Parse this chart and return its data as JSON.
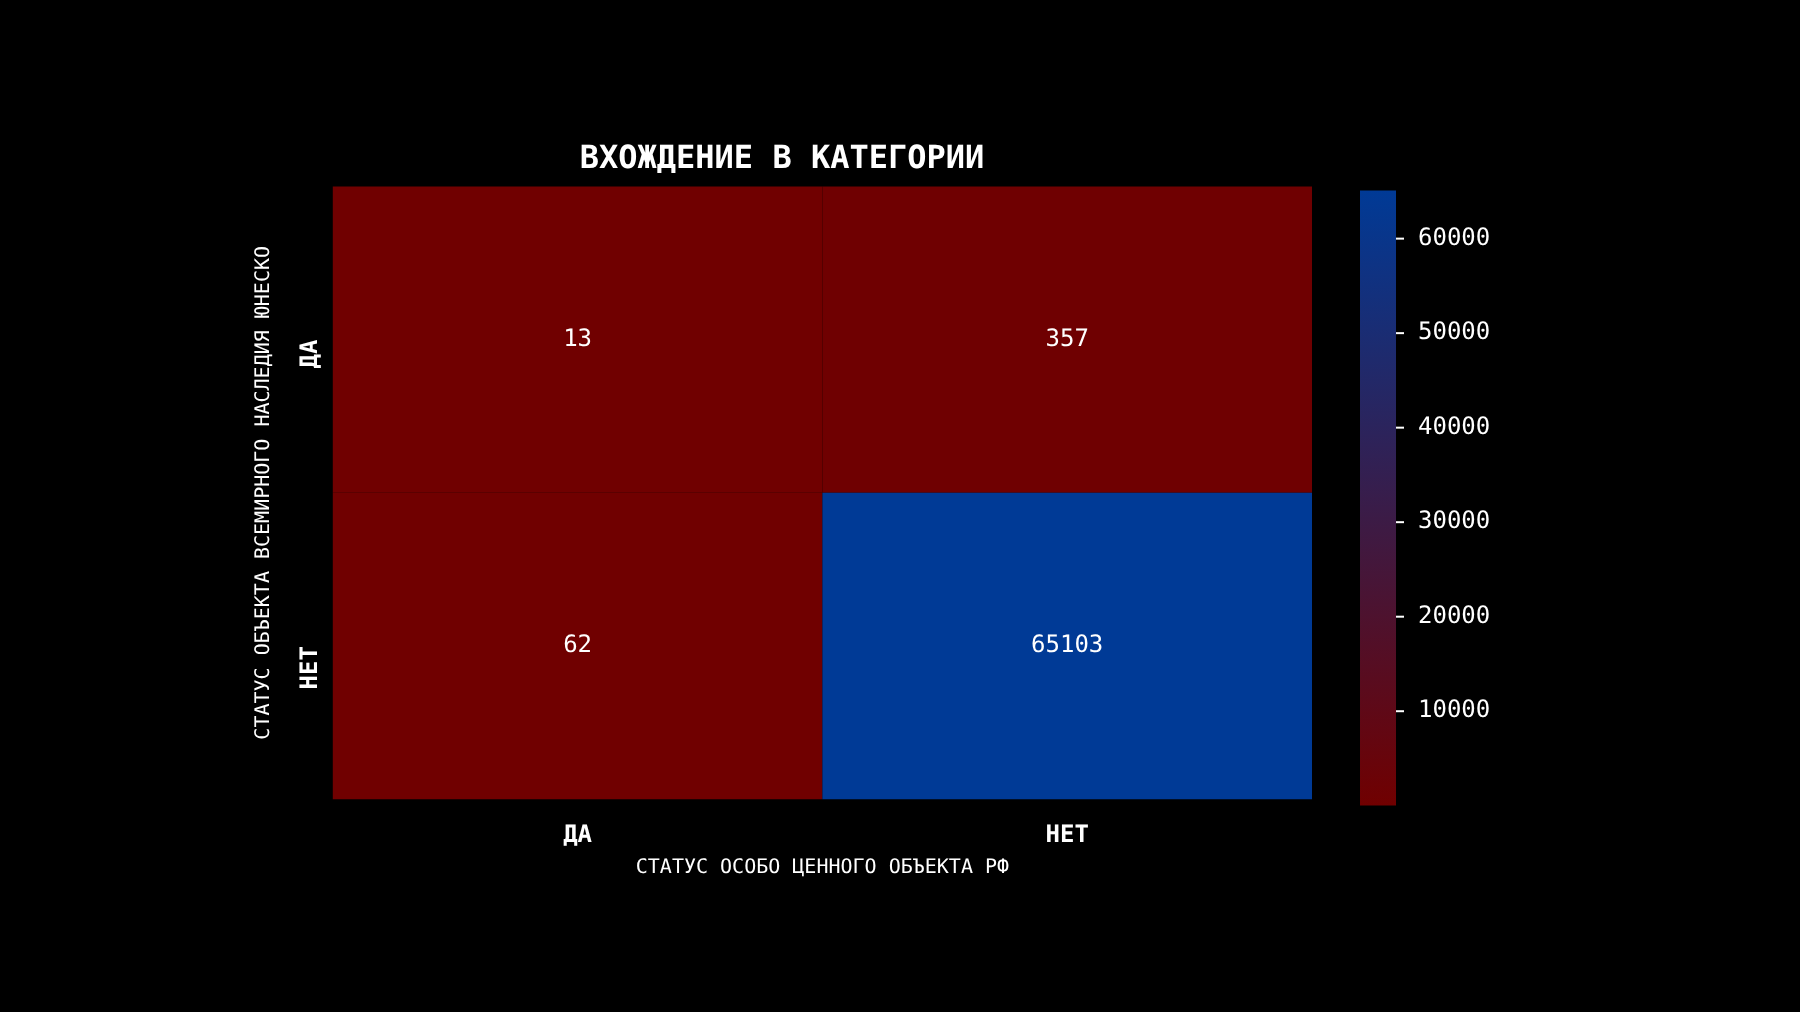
{
  "chart_data": {
    "type": "heatmap",
    "title": "ВХОЖДЕНИЕ В КАТЕГОРИИ",
    "xlabel": "СТАТУС ОСОБО ЦЕННОГО ОБЪЕКТА РФ",
    "ylabel": "СТАТУС ОБЪЕКТА ВСЕМИРНОГО НАСЛЕДИЯ ЮНЕСКО",
    "categories": [
      "ДА",
      "НЕТ"
    ],
    "y_categories": [
      "ДА",
      "НЕТ"
    ],
    "cells": [
      [
        13,
        357
      ],
      [
        62,
        65103
      ]
    ],
    "colors": [
      "#700000",
      "#003a96"
    ],
    "clim": [
      13,
      65103
    ],
    "cticks": [
      10000,
      20000,
      30000,
      40000,
      50000,
      60000
    ],
    "data_labels": true
  }
}
